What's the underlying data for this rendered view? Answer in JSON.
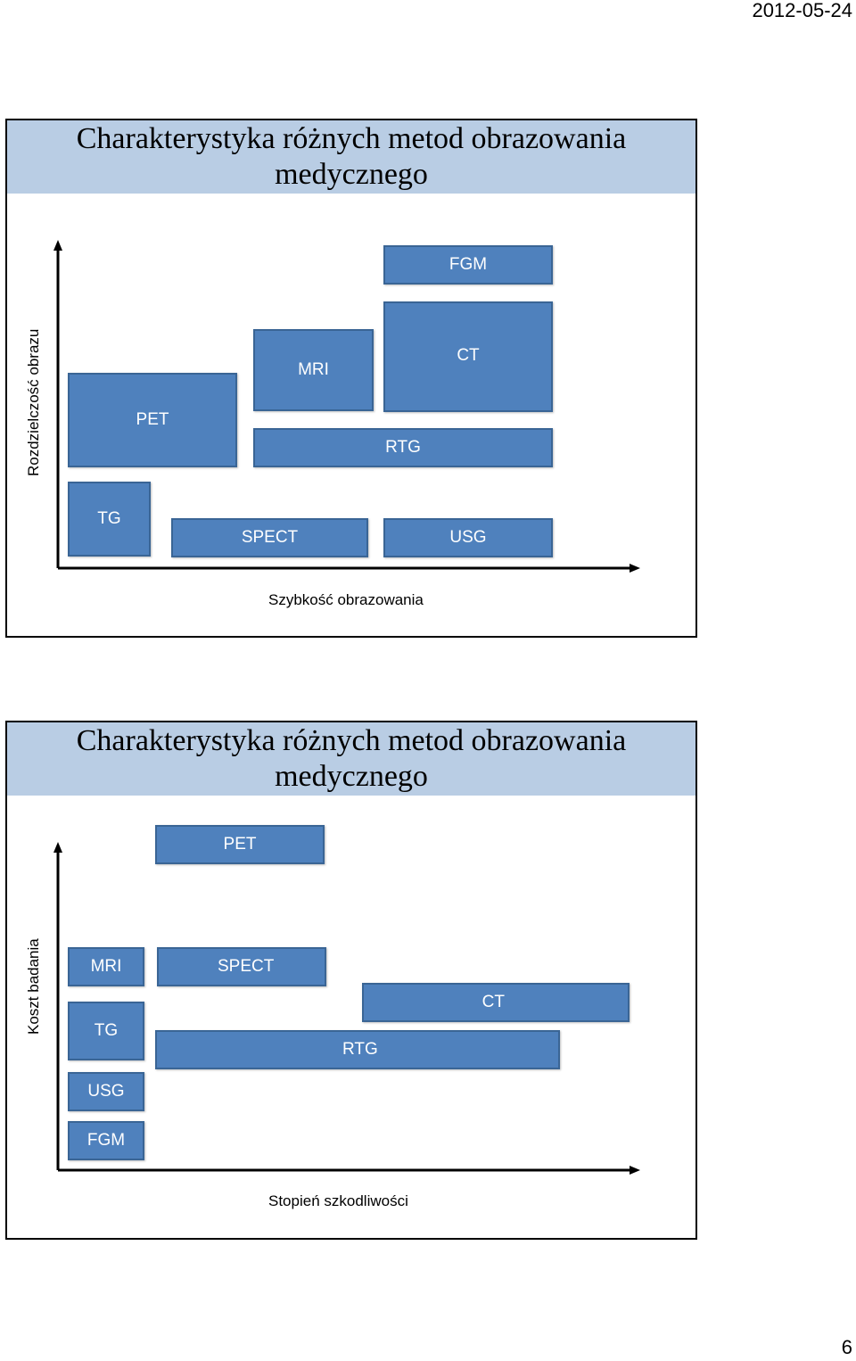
{
  "header": {
    "date": "2012-05-24"
  },
  "footer": {
    "page_number": "6"
  },
  "slides": [
    {
      "title": "Charakterystyka różnych metod obrazowania medycznego",
      "y_axis_label": "Rozdzielczość obrazu",
      "x_axis_label": "Szybkość obrazowania",
      "boxes": {
        "fgm": "FGM",
        "ct": "CT",
        "mri": "MRI",
        "pet": "PET",
        "rtg": "RTG",
        "tg": "TG",
        "spect": "SPECT",
        "usg": "USG"
      }
    },
    {
      "title": "Charakterystyka różnych metod obrazowania medycznego",
      "y_axis_label": "Koszt badania",
      "x_axis_label": "Stopień szkodliwości",
      "boxes": {
        "pet": "PET",
        "mri": "MRI",
        "spect": "SPECT",
        "ct": "CT",
        "tg": "TG",
        "rtg": "RTG",
        "usg": "USG",
        "fgm": "FGM"
      }
    }
  ]
}
